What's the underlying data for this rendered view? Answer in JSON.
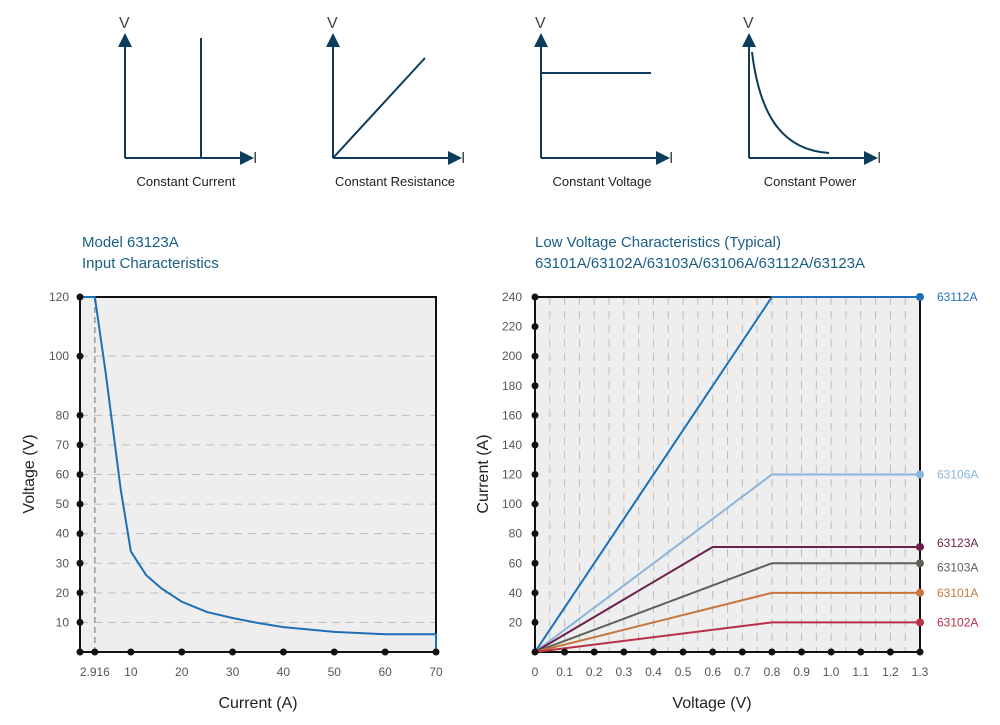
{
  "modes": [
    {
      "label": "Constant Current",
      "axis_y": "V",
      "axis_x": "I",
      "shape": "vertical-line"
    },
    {
      "label": "Constant Resistance",
      "axis_y": "V",
      "axis_x": "I",
      "shape": "diagonal-line"
    },
    {
      "label": "Constant Voltage",
      "axis_y": "V",
      "axis_x": "I",
      "shape": "horizontal-line"
    },
    {
      "label": "Constant Power",
      "axis_y": "V",
      "axis_x": "I",
      "shape": "hyperbola"
    }
  ],
  "colors": {
    "axis": "#0d3b5b",
    "title": "#1a5e85",
    "plot_bg": "#eeeeee",
    "curve": "#1f6fb5",
    "grid": "#bdbdbd",
    "tick": "#555555"
  },
  "chart_data": [
    {
      "type": "line",
      "title": "Model 63123A",
      "subtitle": "Input Characteristics",
      "xlabel": "Current (A)",
      "ylabel": "Voltage (V)",
      "xlim": [
        0,
        70
      ],
      "ylim": [
        0,
        120
      ],
      "xticks": [
        10,
        20,
        30,
        40,
        50,
        60,
        70
      ],
      "xtick_labels": [
        "10",
        "20",
        "30",
        "40",
        "50",
        "60",
        "70"
      ],
      "marker_x": 2.916,
      "marker_label": "2.916",
      "yticks": [
        10,
        20,
        30,
        40,
        50,
        60,
        70,
        80,
        100,
        120
      ],
      "grid": "horizontal dashed",
      "series": [
        {
          "color": "#1f6fb5",
          "x": [
            0,
            2.916,
            5,
            8,
            10,
            13,
            16,
            20,
            25,
            30,
            35,
            40,
            50,
            60,
            70,
            70
          ],
          "y": [
            120,
            120,
            95,
            55,
            34,
            26,
            21.5,
            17,
            13.5,
            11.5,
            9.8,
            8.4,
            6.8,
            6.0,
            6.0,
            0
          ]
        }
      ]
    },
    {
      "type": "line",
      "title": "Low Voltage Characteristics (Typical)",
      "subtitle": "63101A/63102A/63103A/63106A/63112A/63123A",
      "xlabel": "Voltage (V)",
      "ylabel": "Current (A)",
      "xlim": [
        0,
        1.3
      ],
      "ylim": [
        0,
        240
      ],
      "xticks": [
        0,
        0.1,
        0.2,
        0.3,
        0.4,
        0.5,
        0.6,
        0.7,
        0.8,
        0.9,
        1.0,
        1.1,
        1.2,
        1.3
      ],
      "xtick_labels": [
        "0",
        "0.1",
        "0.2",
        "0.3",
        "0.4",
        "0.5",
        "0.6",
        "0.7",
        "0.8",
        "0.9",
        "1.0",
        "1.1",
        "1.2",
        "1.3"
      ],
      "yticks": [
        20,
        40,
        60,
        80,
        100,
        120,
        140,
        160,
        180,
        200,
        220,
        240
      ],
      "grid": "vertical dashed",
      "series": [
        {
          "name": "63112A",
          "color": "#1f6fb5",
          "x": [
            0,
            0.8,
            1.3
          ],
          "y": [
            0,
            240,
            240
          ]
        },
        {
          "name": "63106A",
          "color": "#8ab4dc",
          "x": [
            0,
            0.8,
            1.3
          ],
          "y": [
            0,
            120,
            120
          ]
        },
        {
          "name": "63123A",
          "color": "#6b1f4a",
          "x": [
            0,
            0.6,
            1.3
          ],
          "y": [
            0,
            71,
            71
          ]
        },
        {
          "name": "63103A",
          "color": "#5c6258",
          "x": [
            0,
            0.8,
            1.3
          ],
          "y": [
            0,
            60,
            60
          ]
        },
        {
          "name": "63101A",
          "color": "#c8763f",
          "x": [
            0,
            0.8,
            1.3
          ],
          "y": [
            0,
            40,
            40
          ]
        },
        {
          "name": "63102A",
          "color": "#b82f46",
          "x": [
            0,
            0.8,
            1.3
          ],
          "y": [
            0,
            20,
            20
          ]
        }
      ]
    }
  ]
}
